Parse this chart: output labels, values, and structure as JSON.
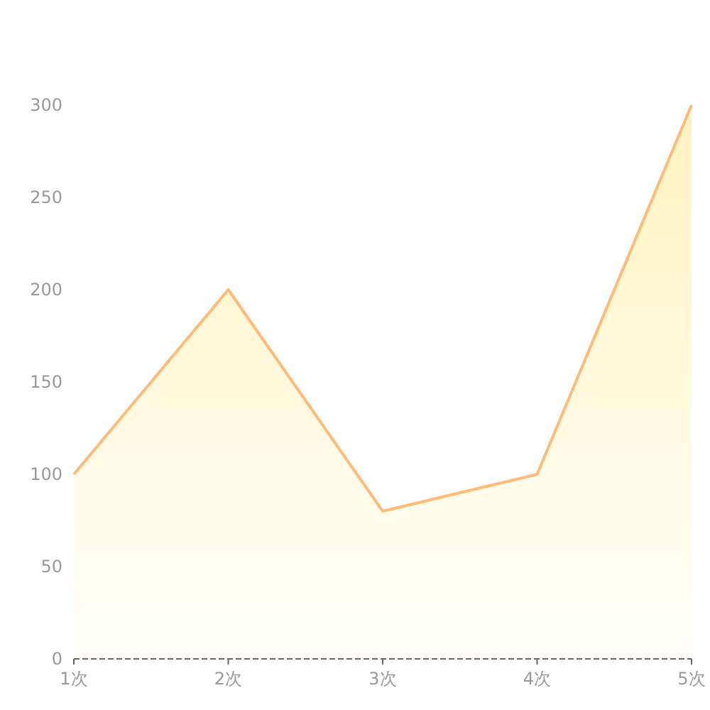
{
  "chart_data": {
    "type": "area",
    "categories": [
      "1次",
      "2次",
      "3次",
      "4次",
      "5次"
    ],
    "series": [
      {
        "color": "#ffbb77",
        "values": [
          100,
          200,
          80,
          100,
          300
        ]
      }
    ],
    "ylim": [
      0,
      300
    ],
    "yticks": [
      0,
      50,
      100,
      150,
      200,
      250,
      300
    ],
    "line_style": "solid",
    "marker": "none"
  }
}
